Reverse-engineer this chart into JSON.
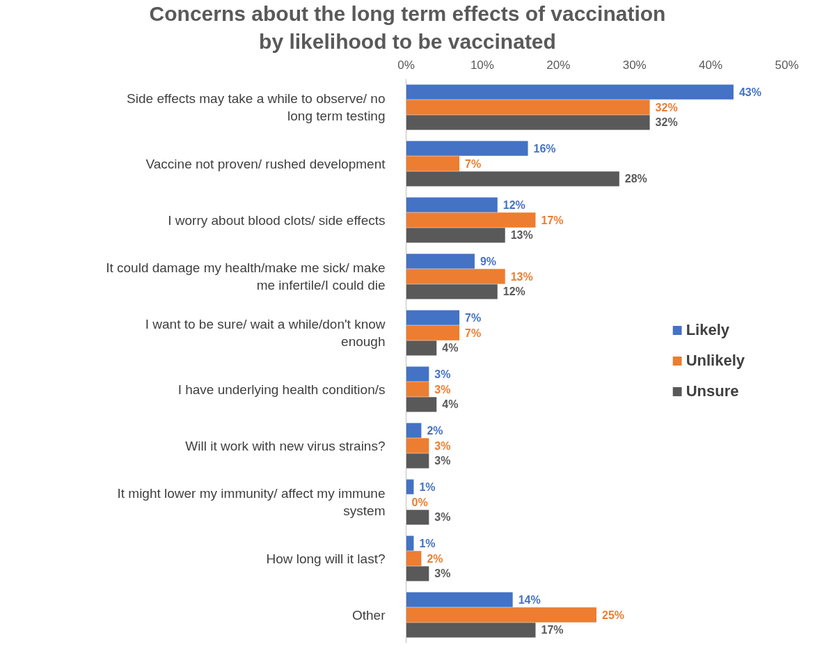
{
  "chart_data": {
    "type": "bar",
    "orientation": "horizontal",
    "title": "Concerns about the long term effects of vaccination",
    "subtitle": "by likelihood to be vaccinated",
    "categories": [
      "Side effects may take a while to observe/ no long term testing",
      "Vaccine not proven/ rushed development",
      "I worry about blood clots/ side effects",
      "It could damage my health/make me sick/ make me infertile/I could die",
      "I want to be sure/ wait a while/don't know enough",
      "I have underlying health condition/s",
      "Will it work with new virus strains?",
      "It might lower my immunity/ affect my immune system",
      "How long will it last?",
      "Other"
    ],
    "series": [
      {
        "name": "Likely",
        "color": "#4472c4",
        "values": [
          43,
          16,
          12,
          9,
          7,
          3,
          2,
          1,
          1,
          14
        ],
        "value_labels": [
          "43%",
          "16%",
          "12%",
          "9%",
          "7%",
          "3%",
          "2%",
          "1%",
          "1%",
          "14%"
        ]
      },
      {
        "name": "Unlikely",
        "color": "#ed7d31",
        "values": [
          32,
          7,
          17,
          13,
          7,
          3,
          3,
          0,
          2,
          25
        ],
        "value_labels": [
          "32%",
          "7%",
          "17%",
          "13%",
          "7%",
          "3%",
          "3%",
          "0%",
          "2%",
          "25%"
        ]
      },
      {
        "name": "Unsure",
        "color": "#595959",
        "values": [
          32,
          28,
          13,
          12,
          4,
          4,
          3,
          3,
          3,
          17
        ],
        "value_labels": [
          "32%",
          "28%",
          "13%",
          "12%",
          "4%",
          "4%",
          "3%",
          "3%",
          "3%",
          "17%"
        ]
      }
    ],
    "xlim": [
      0,
      50
    ],
    "xticks": [
      {
        "value": 0,
        "label": "0%"
      },
      {
        "value": 10,
        "label": "10%"
      },
      {
        "value": 20,
        "label": "20%"
      },
      {
        "value": 30,
        "label": "30%"
      },
      {
        "value": 40,
        "label": "40%"
      },
      {
        "value": 50,
        "label": "50%"
      }
    ],
    "grid": false,
    "legend": "right"
  }
}
